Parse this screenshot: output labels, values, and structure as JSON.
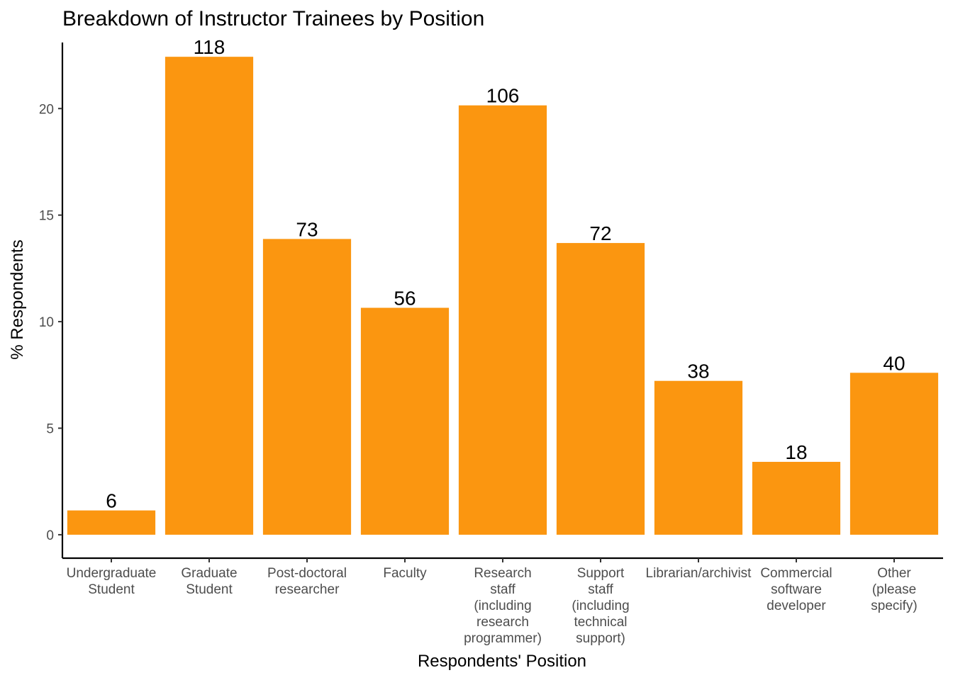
{
  "chart_data": {
    "type": "bar",
    "title": "Breakdown of Instructor Trainees by Position",
    "xlabel": "Respondents' Position",
    "ylabel": "% Respondents",
    "ylim": [
      -1.1,
      23.1
    ],
    "yticks": [
      0,
      5,
      10,
      15,
      20
    ],
    "grid": false,
    "legend": "none",
    "bar_color": "#FB9610",
    "categories": [
      [
        "Undergraduate",
        "Student"
      ],
      [
        "Graduate",
        "Student"
      ],
      [
        "Post-doctoral",
        "researcher"
      ],
      [
        "Faculty"
      ],
      [
        "Research",
        "staff",
        "(including",
        "research",
        "programmer)"
      ],
      [
        "Support",
        "staff",
        "(including",
        "technical",
        "support)"
      ],
      [
        "Librarian/archivist"
      ],
      [
        "Commercial",
        "software",
        "developer"
      ],
      [
        "Other",
        "(please",
        "specify)"
      ]
    ],
    "values": [
      1.14,
      22.43,
      13.88,
      10.65,
      20.15,
      13.69,
      7.22,
      3.42,
      7.6
    ],
    "data_labels": [
      "6",
      "118",
      "73",
      "56",
      "106",
      "72",
      "38",
      "18",
      "40"
    ]
  }
}
